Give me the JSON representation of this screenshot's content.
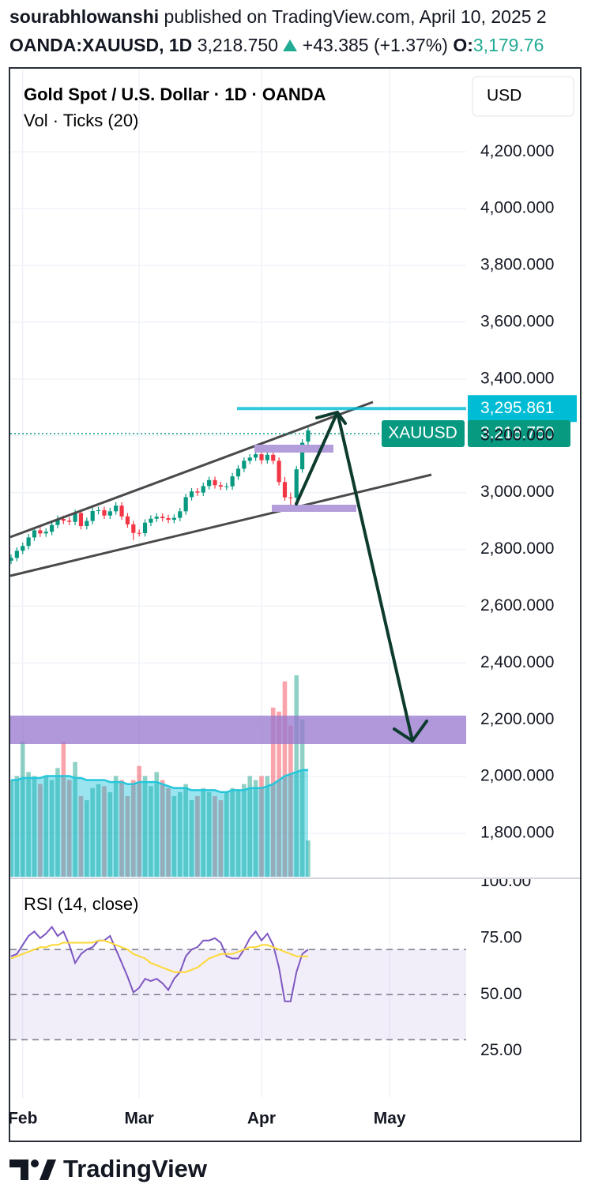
{
  "header": {
    "user": "sourabhlowanshi",
    "published": " published on TradingView.com, April 10, 2025 2",
    "symbol": "OANDA:XAUUSD, 1D",
    "price": "3,218.750",
    "change": "+43.385 (+1.37%)",
    "open_label": "O:",
    "open": "3,179.76",
    "brand": "TradingView"
  },
  "chart_data": {
    "type": "candlestick",
    "title": "Gold Spot / U.S. Dollar · 1D · OANDA",
    "currency": "USD",
    "volume_label": "Vol · Ticks (20)",
    "up_color": "#089981",
    "down_color": "#f23645",
    "xlim": [
      0,
      78
    ],
    "xticks": [
      {
        "value": 2,
        "label": "Feb"
      },
      {
        "value": 22,
        "label": "Mar"
      },
      {
        "value": 43,
        "label": "Apr"
      },
      {
        "value": 65,
        "label": "May"
      }
    ],
    "ylim": [
      1647,
      4490
    ],
    "yticks": [
      {
        "value": 1800,
        "label": "1,800.000"
      },
      {
        "value": 2000,
        "label": "2,000.000"
      },
      {
        "value": 2200,
        "label": "2,200.000"
      },
      {
        "value": 2400,
        "label": "2,400.000"
      },
      {
        "value": 2600,
        "label": "2,600.000"
      },
      {
        "value": 2800,
        "label": "2,800.000"
      },
      {
        "value": 3000,
        "label": "3,000.000"
      },
      {
        "value": 3200,
        "label": "3,200.000"
      },
      {
        "value": 3400,
        "label": "3,400.000"
      },
      {
        "value": 3600,
        "label": "3,600.000"
      },
      {
        "value": 3800,
        "label": "3,800.000"
      },
      {
        "value": 4000,
        "label": "4,000.000"
      },
      {
        "value": 4200,
        "label": "4,200.000"
      }
    ],
    "open": [
      2760,
      2770,
      2795,
      2812,
      2842,
      2867,
      2856,
      2862,
      2886,
      2907,
      2901,
      2897,
      2928,
      2882,
      2900,
      2935,
      2938,
      2919,
      2934,
      2954,
      2916,
      2888,
      2858,
      2857,
      2894,
      2908,
      2915,
      2910,
      2904,
      2911,
      2934,
      2984,
      3004,
      3000,
      3023,
      3044,
      3026,
      3021,
      3022,
      3057,
      3084,
      3112,
      3123,
      3135,
      3114,
      3133,
      3112,
      3037,
      2983,
      2982,
      3082,
      3179.76
    ],
    "high": [
      2782,
      2807,
      2824,
      2854,
      2879,
      2879,
      2874,
      2898,
      2919,
      2919,
      2913,
      2940,
      2940,
      2912,
      2947,
      2950,
      2950,
      2946,
      2966,
      2966,
      2928,
      2900,
      2870,
      2906,
      2920,
      2927,
      2927,
      2922,
      2923,
      2946,
      2996,
      3016,
      3016,
      3035,
      3056,
      3056,
      3038,
      3034,
      3069,
      3096,
      3124,
      3135,
      3148,
      3149,
      3145,
      3168,
      3124,
      3055,
      3000,
      3094,
      3188,
      3235
    ],
    "low": [
      2748,
      2758,
      2783,
      2800,
      2830,
      2844,
      2844,
      2850,
      2874,
      2889,
      2885,
      2885,
      2870,
      2870,
      2888,
      2923,
      2907,
      2907,
      2922,
      2904,
      2876,
      2832,
      2845,
      2845,
      2882,
      2896,
      2898,
      2892,
      2892,
      2899,
      2922,
      2972,
      2988,
      2988,
      3011,
      3014,
      3009,
      3009,
      3010,
      3045,
      3072,
      3100,
      3111,
      3100,
      3102,
      3100,
      3025,
      2971,
      2957,
      2970,
      3070,
      3168
    ],
    "close": [
      2770,
      2795,
      2812,
      2842,
      2867,
      2856,
      2862,
      2886,
      2907,
      2901,
      2897,
      2928,
      2882,
      2900,
      2935,
      2938,
      2919,
      2934,
      2954,
      2916,
      2888,
      2858,
      2857,
      2894,
      2908,
      2915,
      2910,
      2904,
      2911,
      2934,
      2984,
      3004,
      3000,
      3023,
      3044,
      3026,
      3021,
      3022,
      3057,
      3084,
      3112,
      3123,
      3135,
      3114,
      3133,
      3112,
      3037,
      2983,
      2982,
      3082,
      3175.37,
      3218.75
    ],
    "volume_ylim": [
      0,
      100
    ],
    "volume": [
      48,
      50,
      67,
      52,
      50,
      46,
      50,
      48,
      54,
      67,
      48,
      57,
      40,
      38,
      44,
      46,
      45,
      42,
      50,
      48,
      40,
      48,
      55,
      50,
      45,
      52,
      48,
      44,
      40,
      42,
      46,
      38,
      40,
      44,
      42,
      40,
      38,
      42,
      44,
      43,
      46,
      50,
      48,
      50,
      50,
      84,
      82,
      97,
      75,
      100,
      78,
      18
    ],
    "volume_ma": [
      48,
      48,
      49,
      49,
      49,
      49,
      50,
      50,
      50,
      50,
      50,
      49,
      49,
      48,
      48,
      48,
      48,
      47,
      47,
      47,
      46,
      46,
      47,
      47,
      47,
      47,
      46,
      45,
      44,
      44,
      44,
      43,
      43,
      43,
      43,
      43,
      42,
      42,
      43,
      43,
      43,
      44,
      44,
      44,
      45,
      46,
      48,
      50,
      51,
      52,
      53,
      53
    ],
    "hline": {
      "value": 3295.861,
      "label": "3,295.861",
      "color": "#00bcd4"
    },
    "last_price": {
      "symbol": "XAUUSD",
      "value": 3218.75,
      "label": "3,218.750"
    },
    "rsi": {
      "title": "RSI (14, close)",
      "ylim": [
        4.2,
        101.2
      ],
      "yticks": [
        {
          "value": 100,
          "label": "100.00"
        },
        {
          "value": 75,
          "label": "75.00"
        },
        {
          "value": 50,
          "label": "50.00"
        },
        {
          "value": 25,
          "label": "25.00"
        }
      ],
      "levels": [
        70,
        50,
        30
      ],
      "values": [
        67,
        68,
        72,
        76,
        78,
        75,
        77,
        80,
        76,
        78,
        72,
        64,
        68,
        70,
        71,
        74,
        74,
        76,
        70,
        64,
        58,
        51,
        53,
        57,
        56,
        57,
        55,
        52,
        57,
        60,
        67,
        70,
        71,
        74,
        74,
        75,
        73,
        67,
        66,
        66,
        70,
        75,
        78,
        74,
        77,
        72,
        62,
        47,
        47,
        60,
        68,
        70
      ],
      "ma": [
        66,
        67,
        68,
        69,
        70,
        71,
        71,
        72,
        72,
        73,
        73,
        73,
        73,
        73,
        73,
        74,
        74,
        73,
        72,
        71,
        70,
        68,
        67,
        66,
        64,
        63,
        62,
        61,
        60,
        60,
        60,
        61,
        62,
        64,
        66,
        67,
        68,
        68,
        68,
        69,
        70,
        71,
        71,
        72,
        72,
        71,
        70,
        69,
        68,
        67,
        67,
        67
      ],
      "color": "#7e57c2",
      "ma_color": "#fdd835"
    }
  }
}
